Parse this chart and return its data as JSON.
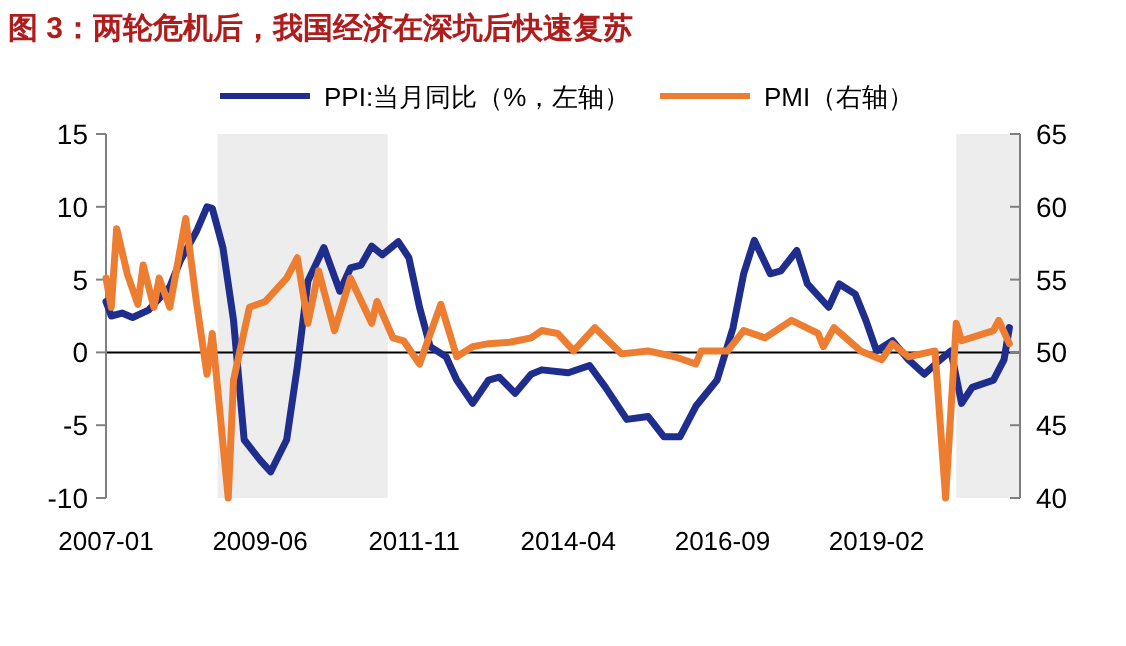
{
  "chart_data": {
    "type": "line",
    "title": "图 3：两轮危机后，我国经济在深坑后快速复苏",
    "xlim": [
      "2007-01",
      "2021-05"
    ],
    "xticks": [
      "2007-01",
      "2009-06",
      "2011-11",
      "2014-04",
      "2016-09",
      "2019-02"
    ],
    "ylim": [
      -10,
      15
    ],
    "yticks": [
      -10,
      -5,
      0,
      5,
      10,
      15
    ],
    "y2lim": [
      40,
      65
    ],
    "y2ticks": [
      40,
      45,
      50,
      55,
      60,
      65
    ],
    "legend": "top",
    "grid": false,
    "ref_lines": [
      {
        "axis": "y",
        "value": 0,
        "color": "#000000"
      }
    ],
    "bands": [
      {
        "axis": "x",
        "from": "2008-10",
        "to": "2011-06",
        "color": "#ededed"
      },
      {
        "axis": "x",
        "from": "2020-05",
        "to": "2021-05",
        "color": "#ededed"
      }
    ],
    "series": [
      {
        "name": "PPI:当月同比（%，左轴）",
        "color": "#1f2d8c",
        "x": [
          "2007-01",
          "2007-02",
          "2007-04",
          "2007-06",
          "2007-09",
          "2008-01",
          "2008-03",
          "2008-06",
          "2008-08",
          "2008-09",
          "2008-11",
          "2009-01",
          "2009-03",
          "2009-06",
          "2009-08",
          "2009-11",
          "2010-01",
          "2010-03",
          "2010-06",
          "2010-09",
          "2010-11",
          "2011-01",
          "2011-03",
          "2011-05",
          "2011-08",
          "2011-10",
          "2011-12",
          "2012-02",
          "2012-05",
          "2012-07",
          "2012-10",
          "2013-01",
          "2013-03",
          "2013-06",
          "2013-09",
          "2013-11",
          "2014-04",
          "2014-08",
          "2014-11",
          "2015-03",
          "2015-07",
          "2015-10",
          "2016-01",
          "2016-04",
          "2016-08",
          "2016-11",
          "2017-01",
          "2017-03",
          "2017-06",
          "2017-08",
          "2017-11",
          "2018-01",
          "2018-05",
          "2018-07",
          "2018-10",
          "2018-12",
          "2019-02",
          "2019-05",
          "2019-08",
          "2019-11",
          "2020-02",
          "2020-04",
          "2020-06",
          "2020-08",
          "2020-12",
          "2021-02",
          "2021-03"
        ],
        "values": [
          3.5,
          2.5,
          2.7,
          2.4,
          2.9,
          4.5,
          6.3,
          8.3,
          10,
          9.9,
          7.2,
          2.2,
          -6,
          -7.4,
          -8.2,
          -6,
          -1,
          4.9,
          7.2,
          4.2,
          5.8,
          6,
          7.3,
          6.7,
          7.6,
          6.5,
          3.1,
          0.4,
          -0.3,
          -1.9,
          -3.5,
          -1.9,
          -1.7,
          -2.8,
          -1.5,
          -1.2,
          -1.4,
          -0.9,
          -2.4,
          -4.6,
          -4.4,
          -5.8,
          -5.8,
          -3.7,
          -1.9,
          1.7,
          5.4,
          7.7,
          5.4,
          5.6,
          7,
          4.7,
          3.1,
          4.7,
          4,
          2.2,
          0.1,
          0.8,
          -0.5,
          -1.5,
          -0.5,
          0.1,
          -3.5,
          -2.4,
          -1.9,
          -0.5,
          1.7
        ]
      },
      {
        "name": "PMI（右轴）",
        "color": "#ed7d31",
        "axis": "y2",
        "x": [
          "2007-01",
          "2007-02",
          "2007-03",
          "2007-05",
          "2007-07",
          "2007-08",
          "2007-10",
          "2007-11",
          "2008-01",
          "2008-04",
          "2008-06",
          "2008-08",
          "2008-09",
          "2008-12",
          "2009-01",
          "2009-04",
          "2009-07",
          "2009-11",
          "2010-01",
          "2010-03",
          "2010-05",
          "2010-08",
          "2010-11",
          "2011-03",
          "2011-04",
          "2011-07",
          "2011-09",
          "2011-12",
          "2012-04",
          "2012-07",
          "2012-10",
          "2013-01",
          "2013-05",
          "2013-09",
          "2013-11",
          "2014-02",
          "2014-05",
          "2014-09",
          "2015-02",
          "2015-07",
          "2015-12",
          "2016-04",
          "2016-05",
          "2016-10",
          "2017-01",
          "2017-05",
          "2017-10",
          "2018-03",
          "2018-04",
          "2018-06",
          "2018-11",
          "2019-03",
          "2019-05",
          "2019-08",
          "2020-01",
          "2020-03",
          "2020-05",
          "2020-06",
          "2020-12",
          "2021-01",
          "2021-03"
        ],
        "values": [
          55.1,
          53.1,
          58.5,
          55.4,
          53.3,
          56,
          53.1,
          55.1,
          53.1,
          59.2,
          53.5,
          48.5,
          51.3,
          40,
          48.1,
          53.1,
          53.5,
          55.1,
          56.5,
          52,
          55.6,
          51.5,
          55.1,
          52,
          53.5,
          51,
          50.8,
          49.2,
          53.3,
          49.7,
          50.4,
          50.6,
          50.7,
          51,
          51.5,
          51.3,
          50.1,
          51.7,
          49.9,
          50.1,
          49.7,
          49.2,
          50.1,
          50.1,
          51.5,
          51,
          52.2,
          51.3,
          50.4,
          51.7,
          50.1,
          49.5,
          50.6,
          49.7,
          50.1,
          40,
          52,
          50.8,
          51.5,
          52.2,
          50.6
        ]
      }
    ]
  }
}
